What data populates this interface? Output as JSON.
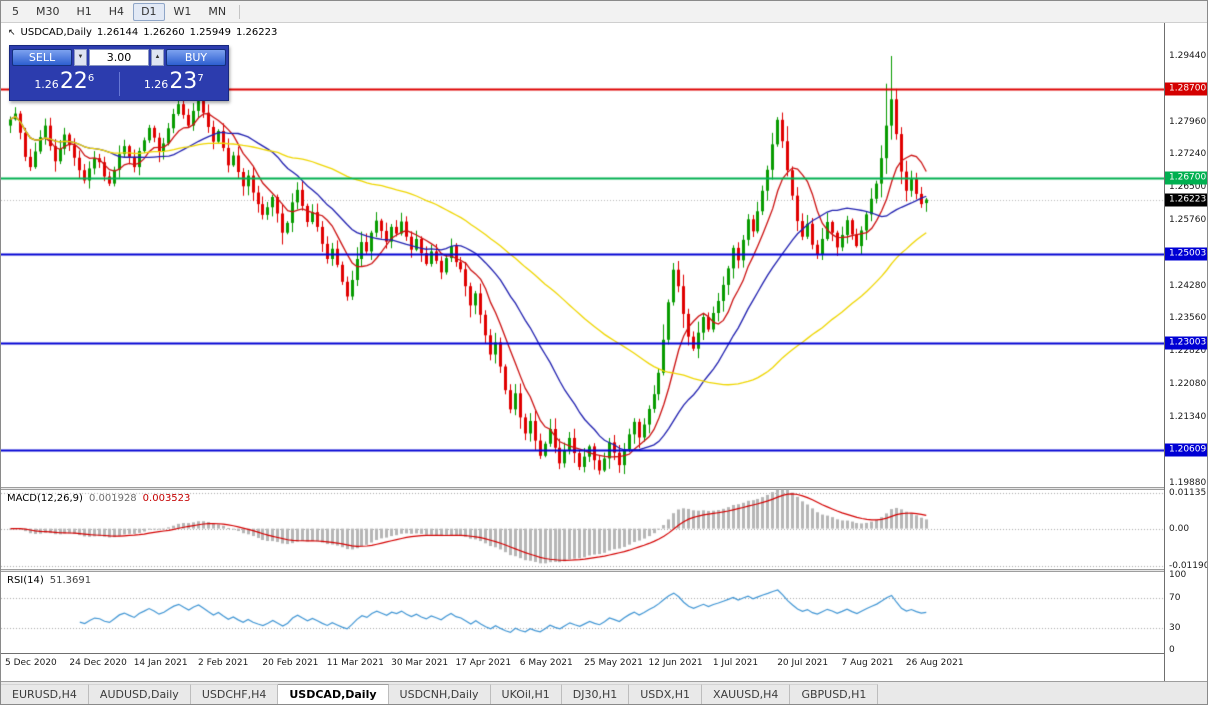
{
  "timeframe_toolbar": {
    "buttons": [
      "5",
      "M30",
      "H1",
      "H4",
      "D1",
      "W1",
      "MN"
    ],
    "active": "D1"
  },
  "chart_header": {
    "symbol": "USDCAD,Daily",
    "open": "1.26144",
    "high": "1.26260",
    "low": "1.25949",
    "close": "1.26223"
  },
  "trade_panel": {
    "sell_label": "SELL",
    "buy_label": "BUY",
    "volume": "3.00",
    "sell_price": {
      "prefix": "1.26",
      "big": "22",
      "sup": "6"
    },
    "buy_price": {
      "prefix": "1.26",
      "big": "23",
      "sup": "7"
    }
  },
  "price_axis": {
    "ticks": [
      {
        "label": "1.29440",
        "value": 1.2944
      },
      {
        "label": "1.27960",
        "value": 1.2796
      },
      {
        "label": "1.27240",
        "value": 1.2724
      },
      {
        "label": "1.26500",
        "value": 1.265
      },
      {
        "label": "1.25760",
        "value": 1.2576
      },
      {
        "label": "1.24280",
        "value": 1.2428
      },
      {
        "label": "1.23560",
        "value": 1.2356
      },
      {
        "label": "1.22820",
        "value": 1.2282
      },
      {
        "label": "1.22080",
        "value": 1.2208
      },
      {
        "label": "1.21340",
        "value": 1.2134
      },
      {
        "label": "1.19880",
        "value": 1.1988
      }
    ],
    "badges": [
      {
        "label": "1.28700",
        "value": 1.287,
        "bg": "#d40000"
      },
      {
        "label": "1.26700",
        "value": 1.267,
        "bg": "#00b050"
      },
      {
        "label": "1.26223",
        "value": 1.26223,
        "bg": "#000000"
      },
      {
        "label": "1.25003",
        "value": 1.25003,
        "bg": "#0000d4"
      },
      {
        "label": "1.23003",
        "value": 1.23003,
        "bg": "#0000d4"
      },
      {
        "label": "1.20609",
        "value": 1.20609,
        "bg": "#0000d4"
      }
    ]
  },
  "hlines": [
    {
      "price": 1.287,
      "color": "#dd0000",
      "width": 2
    },
    {
      "price": 1.267,
      "color": "#00b050",
      "width": 2
    },
    {
      "price": 1.25003,
      "color": "#0000d4",
      "width": 2
    },
    {
      "price": 1.23003,
      "color": "#0000d4",
      "width": 2
    },
    {
      "price": 1.20609,
      "color": "#0000d4",
      "width": 2
    }
  ],
  "macd_panel": {
    "name": "MACD(12,26,9)",
    "value_main": "0.001928",
    "value_signal": "0.003523",
    "ticks": [
      {
        "label": "0.01135",
        "value": 0.01135
      },
      {
        "label": "0.00",
        "value": 0
      },
      {
        "label": "-0.01190",
        "value": -0.0119
      }
    ],
    "range": [
      -0.0119,
      0.01135
    ],
    "histogram_color": "#b6b6b6",
    "signal_color": "#d40000"
  },
  "rsi_panel": {
    "name": "RSI(14)",
    "value": "51.3691",
    "ticks": [
      {
        "label": "100",
        "value": 100
      },
      {
        "label": "70",
        "value": 70
      },
      {
        "label": "30",
        "value": 30
      },
      {
        "label": "0",
        "value": 0
      }
    ],
    "levels": [
      70,
      30
    ],
    "line_color": "#3f95d4"
  },
  "time_axis": {
    "labels": [
      "5 Dec 2020",
      "24 Dec 2020",
      "14 Jan 2021",
      "2 Feb 2021",
      "20 Feb 2021",
      "11 Mar 2021",
      "30 Mar 2021",
      "17 Apr 2021",
      "6 May 2021",
      "25 May 2021",
      "12 Jun 2021",
      "1 Jul 2021",
      "20 Jul 2021",
      "7 Aug 2021",
      "26 Aug 2021"
    ],
    "label_step": 13
  },
  "tabs": {
    "items": [
      "EURUSD,H4",
      "AUDUSD,Daily",
      "USDCHF,H4",
      "USDCAD,Daily",
      "USDCNH,Daily",
      "UKOil,H1",
      "DJ30,H1",
      "USDX,H1",
      "XAUUSD,H4",
      "GBPUSD,H1"
    ],
    "active": "USDCAD,Daily"
  },
  "chart_data": {
    "type": "candlestick",
    "symbol": "USDCAD",
    "timeframe": "Daily",
    "title": "USDCAD,Daily",
    "price_range": [
      1.1978,
      1.3018
    ],
    "bid": 1.26223,
    "first_open": 1.2788,
    "closes": [
      1.2802,
      1.2815,
      1.2772,
      1.2718,
      1.2695,
      1.273,
      1.2762,
      1.2788,
      1.2742,
      1.2708,
      1.2736,
      1.2768,
      1.2744,
      1.2716,
      1.2688,
      1.2665,
      1.2692,
      1.2715,
      1.2706,
      1.2674,
      1.2658,
      1.2689,
      1.2724,
      1.2742,
      1.2718,
      1.2695,
      1.2731,
      1.2755,
      1.2783,
      1.2761,
      1.2729,
      1.2748,
      1.2782,
      1.2814,
      1.2836,
      1.2812,
      1.2788,
      1.2821,
      1.2844,
      1.2817,
      1.2785,
      1.2752,
      1.2776,
      1.2738,
      1.2699,
      1.2721,
      1.2684,
      1.2652,
      1.2676,
      1.2638,
      1.2612,
      1.2588,
      1.2605,
      1.2628,
      1.2591,
      1.2548,
      1.257,
      1.2616,
      1.2644,
      1.2608,
      1.2572,
      1.2594,
      1.2561,
      1.2523,
      1.2489,
      1.2512,
      1.2476,
      1.2438,
      1.2405,
      1.2442,
      1.2489,
      1.2527,
      1.2506,
      1.2548,
      1.2575,
      1.2552,
      1.2528,
      1.2561,
      1.2546,
      1.2573,
      1.2539,
      1.251,
      1.2534,
      1.2502,
      1.2478,
      1.2506,
      1.2485,
      1.2459,
      1.2491,
      1.2518,
      1.2482,
      1.2466,
      1.2428,
      1.2385,
      1.2412,
      1.2364,
      1.2318,
      1.2275,
      1.2302,
      1.2248,
      1.2195,
      1.2152,
      1.2188,
      1.2134,
      1.2098,
      1.2126,
      1.2082,
      1.2048,
      1.2075,
      1.2108,
      1.2066,
      1.2031,
      1.2059,
      1.2088,
      1.2054,
      1.2023,
      1.2046,
      1.2069,
      1.2038,
      1.2015,
      1.2042,
      1.2078,
      1.2055,
      1.2027,
      1.2063,
      1.2096,
      1.2124,
      1.2089,
      1.2118,
      1.2153,
      1.2186,
      1.2234,
      1.2308,
      1.2392,
      1.2465,
      1.2428,
      1.2366,
      1.2315,
      1.2288,
      1.2324,
      1.2359,
      1.2331,
      1.2368,
      1.2395,
      1.2431,
      1.2468,
      1.2514,
      1.2486,
      1.2532,
      1.2578,
      1.2551,
      1.2596,
      1.2642,
      1.2689,
      1.2746,
      1.2801,
      1.2753,
      1.2688,
      1.2631,
      1.2574,
      1.2539,
      1.2568,
      1.2521,
      1.2498,
      1.2534,
      1.2572,
      1.2548,
      1.2515,
      1.2543,
      1.2576,
      1.2544,
      1.2518,
      1.2553,
      1.2589,
      1.2624,
      1.2658,
      1.2715,
      1.2788,
      1.2847,
      1.2769,
      1.2685,
      1.2642,
      1.2668,
      1.2635,
      1.2612,
      1.26223
    ],
    "overrides": {
      "38": {
        "h": 1.2853
      },
      "111": {
        "l": 1.2018
      },
      "115": {
        "l": 1.2016
      },
      "119": {
        "l": 1.2006
      },
      "134": {
        "h": 1.248
      },
      "155": {
        "h": 1.2807
      },
      "177": {
        "h": 1.2882
      },
      "178": {
        "h": 1.2944
      },
      "185": {
        "o": 1.26144,
        "h": 1.2626,
        "l": 1.25949
      }
    },
    "up_color": "#089b00",
    "down_color": "#e00000",
    "ma": [
      {
        "period": 8,
        "color": "#cc1111"
      },
      {
        "period": 21,
        "color": "#2020b0"
      },
      {
        "period": 55,
        "color": "#efd600"
      }
    ]
  }
}
